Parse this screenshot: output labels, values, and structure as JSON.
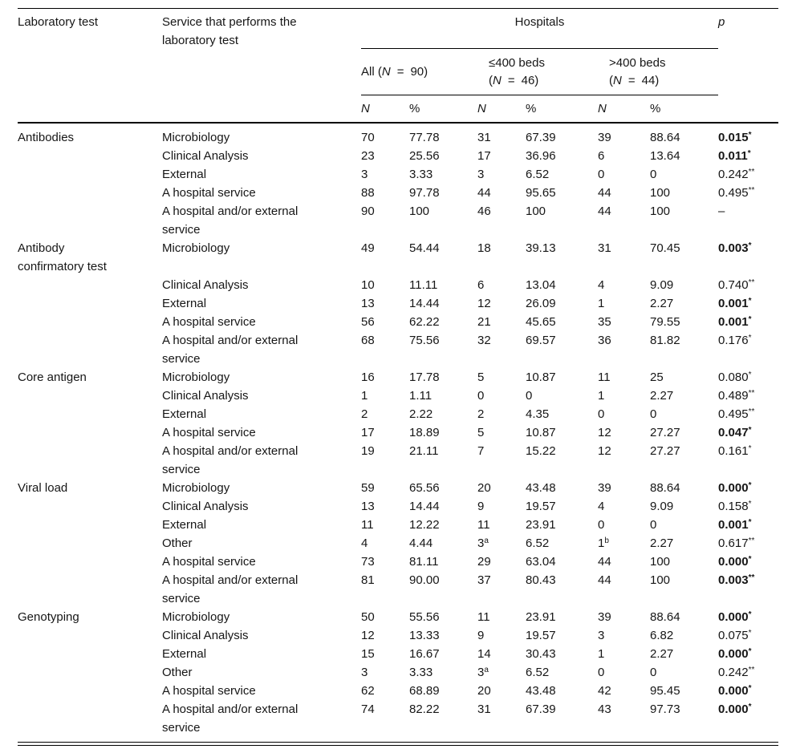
{
  "table": {
    "headers": {
      "laboratory_test": "Laboratory test",
      "service": "Service that performs the laboratory test",
      "hospitals": "Hospitals",
      "p": "p"
    },
    "groups": [
      {
        "line1": "",
        "pre": "All (",
        "n": "N",
        "eq": "=",
        "rest": "90)"
      },
      {
        "line1": "≤400 beds",
        "pre": "(",
        "n": "N",
        "eq": "=",
        "rest": "46)"
      },
      {
        "line1": ">400 beds",
        "pre": "(",
        "n": "N",
        "eq": "=",
        "rest": "44)"
      }
    ],
    "subheaders": [
      "N",
      "%",
      "N",
      "%",
      "N",
      "%"
    ],
    "rows": [
      {
        "test": "Antibodies",
        "service": "Microbiology",
        "cells": [
          "70",
          "77.78",
          "31",
          "67.39",
          "39",
          "88.64"
        ],
        "p": {
          "value": "0.015",
          "sup": "*",
          "bold": true
        }
      },
      {
        "test": "",
        "service": "Clinical Analysis",
        "cells": [
          "23",
          "25.56",
          "17",
          "36.96",
          "6",
          "13.64"
        ],
        "p": {
          "value": "0.011",
          "sup": "*",
          "bold": true
        }
      },
      {
        "test": "",
        "service": "External",
        "cells": [
          "3",
          "3.33",
          "3",
          "6.52",
          "0",
          "0"
        ],
        "p": {
          "value": "0.242",
          "sup": "**",
          "bold": false
        }
      },
      {
        "test": "",
        "service": "A hospital service",
        "cells": [
          "88",
          "97.78",
          "44",
          "95.65",
          "44",
          "100"
        ],
        "p": {
          "value": "0.495",
          "sup": "**",
          "bold": false
        }
      },
      {
        "test": "",
        "service": "A hospital and/or external service",
        "cells": [
          "90",
          "100",
          "46",
          "100",
          "44",
          "100"
        ],
        "p": {
          "value": "–",
          "sup": "",
          "bold": false
        }
      },
      {
        "test": "Antibody confirmatory test",
        "service": "Microbiology",
        "cells": [
          "49",
          "54.44",
          "18",
          "39.13",
          "31",
          "70.45"
        ],
        "p": {
          "value": "0.003",
          "sup": "*",
          "bold": true
        }
      },
      {
        "test": "",
        "service": "Clinical Analysis",
        "cells": [
          "10",
          "11.11",
          "6",
          "13.04",
          "4",
          "9.09"
        ],
        "p": {
          "value": "0.740",
          "sup": "**",
          "bold": false
        }
      },
      {
        "test": "",
        "service": "External",
        "cells": [
          "13",
          "14.44",
          "12",
          "26.09",
          "1",
          "2.27"
        ],
        "p": {
          "value": "0.001",
          "sup": "*",
          "bold": true
        }
      },
      {
        "test": "",
        "service": "A hospital service",
        "cells": [
          "56",
          "62.22",
          "21",
          "45.65",
          "35",
          "79.55"
        ],
        "p": {
          "value": "0.001",
          "sup": "*",
          "bold": true
        }
      },
      {
        "test": "",
        "service": "A hospital and/or external service",
        "cells": [
          "68",
          "75.56",
          "32",
          "69.57",
          "36",
          "81.82"
        ],
        "p": {
          "value": "0.176",
          "sup": "*",
          "bold": false
        }
      },
      {
        "test": "Core antigen",
        "service": "Microbiology",
        "cells": [
          "16",
          "17.78",
          "5",
          "10.87",
          "11",
          "25"
        ],
        "p": {
          "value": "0.080",
          "sup": "*",
          "bold": false
        }
      },
      {
        "test": "",
        "service": "Clinical Analysis",
        "cells": [
          "1",
          "1.11",
          "0",
          "0",
          "1",
          "2.27"
        ],
        "p": {
          "value": "0.489",
          "sup": "**",
          "bold": false
        }
      },
      {
        "test": "",
        "service": "External",
        "cells": [
          "2",
          "2.22",
          "2",
          "4.35",
          "0",
          "0"
        ],
        "p": {
          "value": "0.495",
          "sup": "**",
          "bold": false
        }
      },
      {
        "test": "",
        "service": "A hospital service",
        "cells": [
          "17",
          "18.89",
          "5",
          "10.87",
          "12",
          "27.27"
        ],
        "p": {
          "value": "0.047",
          "sup": "*",
          "bold": true
        }
      },
      {
        "test": "",
        "service": "A hospital and/or external service",
        "cells": [
          "19",
          "21.11",
          "7",
          "15.22",
          "12",
          "27.27"
        ],
        "p": {
          "value": "0.161",
          "sup": "*",
          "bold": false
        }
      },
      {
        "test": "Viral load",
        "service": "Microbiology",
        "cells": [
          "59",
          "65.56",
          "20",
          "43.48",
          "39",
          "88.64"
        ],
        "p": {
          "value": "0.000",
          "sup": "*",
          "bold": true
        }
      },
      {
        "test": "",
        "service": "Clinical Analysis",
        "cells": [
          "13",
          "14.44",
          "9",
          "19.57",
          "4",
          "9.09"
        ],
        "p": {
          "value": "0.158",
          "sup": "*",
          "bold": false
        }
      },
      {
        "test": "",
        "service": "External",
        "cells": [
          "11",
          "12.22",
          "11",
          "23.91",
          "0",
          "0"
        ],
        "p": {
          "value": "0.001",
          "sup": "*",
          "bold": true
        }
      },
      {
        "test": "",
        "service": "Other",
        "cells": [
          "4",
          "4.44",
          {
            "v": "3",
            "sup": "a"
          },
          "6.52",
          {
            "v": "1",
            "sup": "b"
          },
          "2.27"
        ],
        "p": {
          "value": "0.617",
          "sup": "**",
          "bold": false
        }
      },
      {
        "test": "",
        "service": "A hospital service",
        "cells": [
          "73",
          "81.11",
          "29",
          "63.04",
          "44",
          "100"
        ],
        "p": {
          "value": "0.000",
          "sup": "*",
          "bold": true
        }
      },
      {
        "test": "",
        "service": "A hospital and/or external service",
        "cells": [
          "81",
          "90.00",
          "37",
          "80.43",
          "44",
          "100"
        ],
        "p": {
          "value": "0.003",
          "sup": "**",
          "bold": true
        }
      },
      {
        "test": "Genotyping",
        "service": "Microbiology",
        "cells": [
          "50",
          "55.56",
          "11",
          "23.91",
          "39",
          "88.64"
        ],
        "p": {
          "value": "0.000",
          "sup": "*",
          "bold": true
        }
      },
      {
        "test": "",
        "service": "Clinical Analysis",
        "cells": [
          "12",
          "13.33",
          "9",
          "19.57",
          "3",
          "6.82"
        ],
        "p": {
          "value": "0.075",
          "sup": "*",
          "bold": false
        }
      },
      {
        "test": "",
        "service": "External",
        "cells": [
          "15",
          "16.67",
          "14",
          "30.43",
          "1",
          "2.27"
        ],
        "p": {
          "value": "0.000",
          "sup": "*",
          "bold": true
        }
      },
      {
        "test": "",
        "service": "Other",
        "cells": [
          "3",
          "3.33",
          {
            "v": "3",
            "sup": "a"
          },
          "6.52",
          "0",
          "0"
        ],
        "p": {
          "value": "0.242",
          "sup": "**",
          "bold": false
        }
      },
      {
        "test": "",
        "service": "A hospital service",
        "cells": [
          "62",
          "68.89",
          "20",
          "43.48",
          "42",
          "95.45"
        ],
        "p": {
          "value": "0.000",
          "sup": "*",
          "bold": true
        }
      },
      {
        "test": "",
        "service": "A hospital and/or external service",
        "cells": [
          "74",
          "82.22",
          "31",
          "67.39",
          "43",
          "97.73"
        ],
        "p": {
          "value": "0.000",
          "sup": "*",
          "bold": true
        }
      }
    ]
  }
}
